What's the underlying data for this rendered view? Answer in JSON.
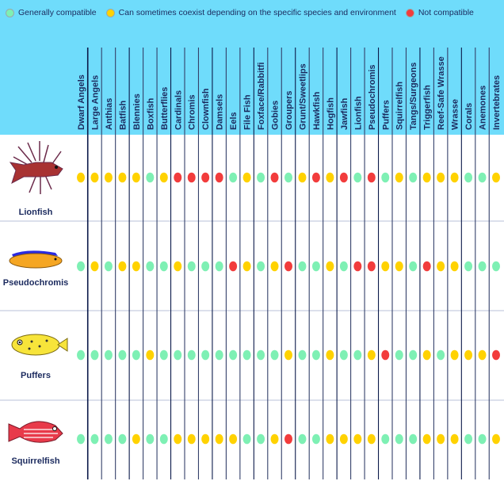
{
  "colors": {
    "G": "#7ef0b4",
    "Y": "#ffd200",
    "R": "#f23c3c",
    "header_bg": "#6fdcfb",
    "text": "#1b2a5e"
  },
  "legend": [
    {
      "key": "G",
      "label": "Generally compatible"
    },
    {
      "key": "Y",
      "label": "Can sometimes coexist depending on the specific species and environment"
    },
    {
      "key": "R",
      "label": "Not compatible"
    }
  ],
  "chart_data": {
    "type": "table",
    "columns": [
      "Dwarf Angels",
      "Large Angels",
      "Anthias",
      "Batfish",
      "Blennies",
      "Boxfish",
      "Butterflies",
      "Cardinals",
      "Chromis",
      "Clownfish",
      "Damsels",
      "Eels",
      "File Fish",
      "Foxface/Rabbitfi",
      "Gobies",
      "Groupers",
      "Grunt/Sweetlips",
      "Hawkfish",
      "Hogfish",
      "Jawfish",
      "Lionfish",
      "Pseudochromis",
      "Puffers",
      "Squirrelfish",
      "Tangs/Surgeons",
      "Triggerfish",
      "Reef-Safe Wrasse",
      "Wrasse",
      "Corals",
      "Anemones",
      "Invertebrates"
    ],
    "rows": [
      {
        "name": "Lionfish",
        "icon": "lionfish-icon",
        "values": [
          "Y",
          "Y",
          "Y",
          "Y",
          "Y",
          "G",
          "Y",
          "R",
          "R",
          "R",
          "R",
          "G",
          "Y",
          "G",
          "R",
          "G",
          "Y",
          "R",
          "Y",
          "R",
          "G",
          "R",
          "G",
          "Y",
          "G",
          "Y",
          "Y",
          "Y",
          "G",
          "G",
          "Y"
        ]
      },
      {
        "name": "Pseudochromis",
        "icon": "pseudochromis-icon",
        "values": [
          "G",
          "Y",
          "G",
          "Y",
          "Y",
          "G",
          "G",
          "Y",
          "G",
          "G",
          "G",
          "R",
          "Y",
          "G",
          "Y",
          "R",
          "G",
          "G",
          "Y",
          "G",
          "R",
          "R",
          "Y",
          "Y",
          "G",
          "R",
          "Y",
          "Y",
          "G",
          "G",
          "G"
        ]
      },
      {
        "name": "Puffers",
        "icon": "puffer-icon",
        "values": [
          "G",
          "G",
          "G",
          "G",
          "G",
          "Y",
          "G",
          "G",
          "G",
          "G",
          "G",
          "G",
          "G",
          "G",
          "G",
          "Y",
          "G",
          "G",
          "Y",
          "G",
          "G",
          "Y",
          "R",
          "G",
          "G",
          "Y",
          "G",
          "Y",
          "Y",
          "Y",
          "R"
        ]
      },
      {
        "name": "Squirrelfish",
        "icon": "squirrelfish-icon",
        "values": [
          "G",
          "G",
          "G",
          "G",
          "Y",
          "G",
          "G",
          "Y",
          "Y",
          "Y",
          "Y",
          "Y",
          "G",
          "G",
          "Y",
          "R",
          "G",
          "G",
          "Y",
          "Y",
          "Y",
          "Y",
          "G",
          "G",
          "G",
          "Y",
          "Y",
          "Y",
          "G",
          "G",
          "Y"
        ]
      }
    ]
  }
}
